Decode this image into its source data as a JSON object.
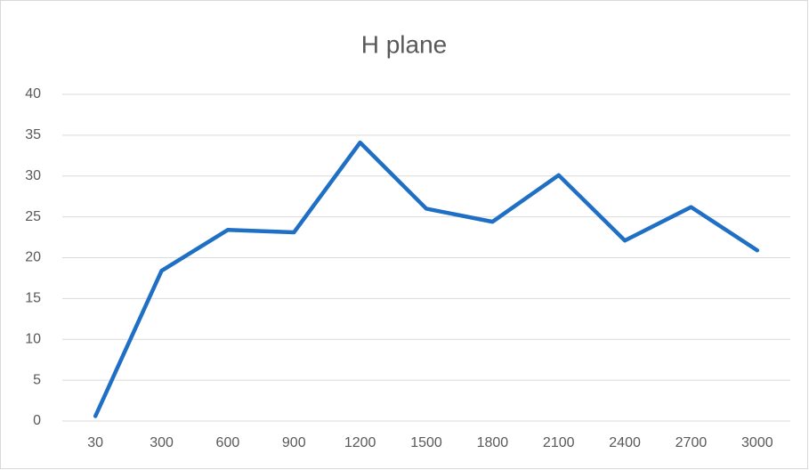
{
  "chart_data": {
    "type": "line",
    "title": "H plane",
    "categories": [
      "30",
      "300",
      "600",
      "900",
      "1200",
      "1500",
      "1800",
      "2100",
      "2400",
      "2700",
      "3000"
    ],
    "series": [
      {
        "name": "H plane",
        "color": "#1f6fc5",
        "values": [
          0.6,
          18.4,
          23.4,
          23.1,
          34.1,
          26.0,
          24.4,
          30.1,
          22.1,
          26.2,
          20.9
        ]
      }
    ],
    "ylim": [
      0,
      40
    ],
    "yticks": [
      0,
      5,
      10,
      15,
      20,
      25,
      30,
      35,
      40
    ],
    "grid": true
  }
}
